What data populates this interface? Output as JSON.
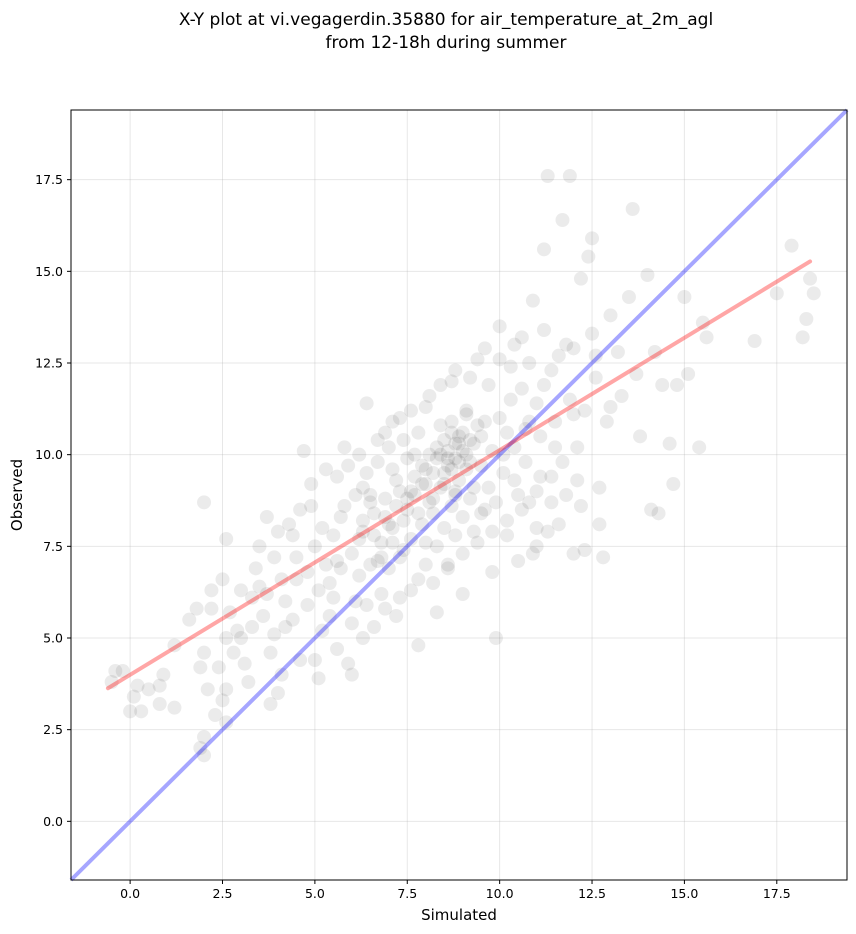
{
  "chart_data": {
    "type": "scatter",
    "title_line1": "X-Y plot at vi.vegagerdin.35880 for air_temperature_at_2m_agl",
    "title_line2": "from 12-18h during summer",
    "xlabel": "Simulated",
    "ylabel": "Observed",
    "xlim": [
      -1.6,
      19.4
    ],
    "ylim": [
      -1.6,
      19.4
    ],
    "xticks": [
      0.0,
      2.5,
      5.0,
      7.5,
      10.0,
      12.5,
      15.0,
      17.5
    ],
    "xtick_labels": [
      "0.0",
      "2.5",
      "5.0",
      "7.5",
      "10.0",
      "12.5",
      "15.0",
      "17.5"
    ],
    "yticks": [
      0.0,
      2.5,
      5.0,
      7.5,
      10.0,
      12.5,
      15.0,
      17.5
    ],
    "ytick_labels": [
      "0.0",
      "2.5",
      "5.0",
      "7.5",
      "10.0",
      "12.5",
      "15.0",
      "17.5"
    ],
    "grid": true,
    "point_color": "#000000",
    "point_opacity": 0.08,
    "identity_line": {
      "color": "#0000ff",
      "opacity": 0.35,
      "x": [
        -1.6,
        19.4
      ],
      "y": [
        -1.6,
        19.4
      ]
    },
    "fit_line": {
      "color": "#ff0000",
      "opacity": 0.35,
      "x": [
        -0.6,
        18.4
      ],
      "y": [
        3.63,
        15.27
      ]
    },
    "points": [
      [
        -0.5,
        3.8
      ],
      [
        -0.4,
        4.1
      ],
      [
        -0.2,
        4.1
      ],
      [
        0.1,
        3.4
      ],
      [
        0.2,
        3.7
      ],
      [
        0.0,
        3.0
      ],
      [
        0.3,
        3.0
      ],
      [
        0.5,
        3.6
      ],
      [
        0.8,
        3.7
      ],
      [
        0.9,
        4.0
      ],
      [
        0.8,
        3.2
      ],
      [
        1.2,
        3.1
      ],
      [
        1.2,
        4.8
      ],
      [
        1.6,
        5.5
      ],
      [
        1.8,
        5.8
      ],
      [
        1.9,
        4.2
      ],
      [
        2.0,
        4.6
      ],
      [
        2.1,
        3.6
      ],
      [
        1.9,
        2.0
      ],
      [
        2.0,
        2.3
      ],
      [
        2.0,
        1.8
      ],
      [
        2.3,
        2.9
      ],
      [
        2.5,
        3.3
      ],
      [
        2.6,
        3.6
      ],
      [
        2.6,
        2.7
      ],
      [
        2.0,
        8.7
      ],
      [
        2.2,
        6.3
      ],
      [
        2.5,
        6.6
      ],
      [
        2.6,
        7.7
      ],
      [
        2.7,
        5.7
      ],
      [
        3.0,
        5.0
      ],
      [
        3.1,
        4.3
      ],
      [
        3.2,
        3.8
      ],
      [
        3.3,
        6.1
      ],
      [
        3.5,
        6.4
      ],
      [
        3.7,
        8.3
      ],
      [
        3.8,
        3.2
      ],
      [
        4.0,
        3.5
      ],
      [
        4.1,
        4.0
      ],
      [
        4.2,
        5.3
      ],
      [
        3.9,
        7.2
      ],
      [
        4.4,
        7.8
      ],
      [
        2.2,
        5.8
      ],
      [
        2.6,
        5.0
      ],
      [
        2.8,
        4.6
      ],
      [
        2.4,
        4.2
      ],
      [
        2.9,
        5.2
      ],
      [
        3.4,
        6.9
      ],
      [
        3.6,
        5.6
      ],
      [
        3.8,
        4.6
      ],
      [
        4.2,
        6.0
      ],
      [
        4.5,
        6.6
      ],
      [
        4.6,
        4.4
      ],
      [
        4.7,
        10.1
      ],
      [
        4.9,
        8.6
      ],
      [
        5.0,
        4.4
      ],
      [
        5.1,
        3.9
      ],
      [
        5.2,
        5.2
      ],
      [
        5.3,
        7.0
      ],
      [
        5.5,
        6.1
      ],
      [
        5.6,
        4.7
      ],
      [
        5.6,
        9.4
      ],
      [
        5.7,
        8.3
      ],
      [
        5.8,
        10.2
      ],
      [
        5.9,
        4.3
      ],
      [
        6.0,
        4.0
      ],
      [
        6.1,
        6.0
      ],
      [
        6.2,
        7.7
      ],
      [
        6.3,
        5.0
      ],
      [
        6.3,
        9.1
      ],
      [
        6.4,
        11.4
      ],
      [
        6.5,
        8.7
      ],
      [
        6.6,
        5.3
      ],
      [
        6.7,
        7.1
      ],
      [
        6.8,
        6.2
      ],
      [
        6.9,
        10.6
      ],
      [
        7.0,
        8.1
      ],
      [
        7.1,
        9.6
      ],
      [
        7.2,
        5.6
      ],
      [
        7.3,
        11.0
      ],
      [
        7.4,
        7.4
      ],
      [
        7.5,
        8.8
      ],
      [
        7.6,
        6.3
      ],
      [
        7.7,
        10.0
      ],
      [
        7.8,
        4.8
      ],
      [
        7.9,
        9.2
      ],
      [
        8.0,
        7.6
      ],
      [
        8.1,
        11.6
      ],
      [
        8.2,
        8.4
      ],
      [
        8.3,
        5.7
      ],
      [
        8.4,
        10.8
      ],
      [
        8.5,
        9.5
      ],
      [
        8.6,
        7.0
      ],
      [
        8.7,
        12.0
      ],
      [
        8.8,
        8.9
      ],
      [
        8.9,
        10.3
      ],
      [
        9.0,
        6.2
      ],
      [
        9.1,
        11.2
      ],
      [
        9.2,
        9.8
      ],
      [
        9.3,
        7.9
      ],
      [
        9.4,
        12.6
      ],
      [
        9.5,
        10.5
      ],
      [
        9.6,
        8.5
      ],
      [
        9.7,
        11.9
      ],
      [
        9.8,
        6.8
      ],
      [
        9.9,
        5.0
      ],
      [
        10.0,
        13.5
      ],
      [
        10.1,
        10.0
      ],
      [
        10.2,
        8.2
      ],
      [
        10.3,
        12.4
      ],
      [
        10.4,
        9.3
      ],
      [
        10.5,
        7.1
      ],
      [
        10.6,
        13.2
      ],
      [
        10.7,
        10.7
      ],
      [
        10.8,
        8.7
      ],
      [
        10.9,
        14.2
      ],
      [
        11.0,
        11.4
      ],
      [
        11.1,
        9.4
      ],
      [
        11.2,
        15.6
      ],
      [
        11.3,
        17.6
      ],
      [
        11.4,
        12.3
      ],
      [
        11.5,
        10.2
      ],
      [
        11.6,
        8.1
      ],
      [
        11.7,
        16.4
      ],
      [
        11.8,
        13.0
      ],
      [
        11.9,
        17.6
      ],
      [
        12.0,
        11.1
      ],
      [
        12.1,
        9.3
      ],
      [
        12.2,
        14.8
      ],
      [
        12.3,
        7.4
      ],
      [
        12.4,
        15.4
      ],
      [
        12.5,
        15.9
      ],
      [
        12.6,
        12.7
      ],
      [
        12.7,
        9.1
      ],
      [
        12.8,
        7.2
      ],
      [
        12.9,
        10.9
      ],
      [
        13.0,
        13.8
      ],
      [
        13.2,
        12.8
      ],
      [
        13.3,
        11.6
      ],
      [
        13.5,
        14.3
      ],
      [
        13.6,
        16.7
      ],
      [
        13.7,
        12.2
      ],
      [
        13.8,
        10.5
      ],
      [
        14.0,
        14.9
      ],
      [
        14.1,
        8.5
      ],
      [
        14.2,
        12.8
      ],
      [
        14.3,
        8.4
      ],
      [
        14.4,
        11.9
      ],
      [
        14.6,
        10.3
      ],
      [
        14.7,
        9.2
      ],
      [
        14.8,
        11.9
      ],
      [
        15.0,
        14.3
      ],
      [
        15.1,
        12.2
      ],
      [
        15.4,
        10.2
      ],
      [
        15.5,
        13.6
      ],
      [
        15.6,
        13.2
      ],
      [
        16.9,
        13.1
      ],
      [
        17.5,
        14.4
      ],
      [
        17.9,
        15.7
      ],
      [
        18.2,
        13.2
      ],
      [
        18.3,
        13.7
      ],
      [
        18.4,
        14.8
      ],
      [
        18.5,
        14.4
      ],
      [
        4.5,
        7.2
      ],
      [
        4.8,
        6.8
      ],
      [
        5.0,
        7.5
      ],
      [
        5.2,
        8.0
      ],
      [
        5.4,
        6.5
      ],
      [
        5.5,
        7.8
      ],
      [
        5.7,
        6.9
      ],
      [
        5.8,
        8.6
      ],
      [
        6.0,
        7.3
      ],
      [
        6.1,
        8.9
      ],
      [
        6.2,
        6.7
      ],
      [
        6.3,
        7.9
      ],
      [
        6.4,
        9.5
      ],
      [
        6.5,
        7.0
      ],
      [
        6.6,
        8.4
      ],
      [
        6.7,
        9.8
      ],
      [
        6.8,
        7.6
      ],
      [
        6.9,
        8.8
      ],
      [
        7.0,
        10.2
      ],
      [
        7.0,
        6.9
      ],
      [
        7.1,
        8.0
      ],
      [
        7.2,
        9.3
      ],
      [
        7.3,
        7.2
      ],
      [
        7.4,
        10.4
      ],
      [
        7.5,
        8.5
      ],
      [
        7.5,
        9.9
      ],
      [
        7.6,
        7.7
      ],
      [
        7.7,
        8.9
      ],
      [
        7.8,
        10.6
      ],
      [
        7.9,
        8.1
      ],
      [
        8.0,
        9.6
      ],
      [
        8.0,
        7.0
      ],
      [
        8.1,
        10.0
      ],
      [
        8.2,
        8.8
      ],
      [
        8.3,
        9.9
      ],
      [
        8.3,
        7.5
      ],
      [
        8.4,
        9.1
      ],
      [
        8.5,
        10.4
      ],
      [
        8.5,
        8.0
      ],
      [
        8.6,
        9.7
      ],
      [
        8.7,
        10.9
      ],
      [
        8.7,
        8.6
      ],
      [
        8.8,
        9.9
      ],
      [
        8.8,
        7.8
      ],
      [
        8.9,
        9.3
      ],
      [
        9.0,
        10.6
      ],
      [
        9.0,
        8.3
      ],
      [
        9.1,
        10.0
      ],
      [
        9.1,
        11.1
      ],
      [
        9.2,
        8.8
      ],
      [
        9.3,
        10.3
      ],
      [
        9.3,
        9.1
      ],
      [
        9.4,
        10.8
      ],
      [
        9.5,
        8.4
      ],
      [
        9.5,
        9.7
      ],
      [
        9.6,
        10.9
      ],
      [
        9.7,
        9.1
      ],
      [
        9.8,
        10.1
      ],
      [
        9.9,
        8.7
      ],
      [
        10.0,
        11.0
      ],
      [
        10.1,
        9.5
      ],
      [
        10.2,
        10.6
      ],
      [
        10.3,
        11.5
      ],
      [
        10.4,
        10.2
      ],
      [
        10.5,
        8.9
      ],
      [
        10.6,
        11.8
      ],
      [
        10.7,
        9.8
      ],
      [
        10.8,
        10.9
      ],
      [
        11.0,
        9.0
      ],
      [
        11.1,
        10.5
      ],
      [
        11.2,
        11.9
      ],
      [
        11.4,
        9.4
      ],
      [
        11.5,
        10.9
      ],
      [
        11.7,
        9.8
      ],
      [
        11.9,
        11.5
      ],
      [
        12.1,
        10.2
      ],
      [
        12.3,
        11.2
      ],
      [
        8.6,
        10.1
      ],
      [
        8.7,
        9.6
      ],
      [
        8.8,
        10.3
      ],
      [
        8.9,
        9.8
      ],
      [
        9.0,
        10.1
      ],
      [
        8.5,
        9.2
      ],
      [
        8.6,
        9.9
      ],
      [
        8.9,
        10.5
      ],
      [
        9.1,
        9.6
      ],
      [
        8.4,
        10.0
      ],
      [
        8.2,
        9.5
      ],
      [
        8.8,
        9.0
      ],
      [
        9.2,
        10.4
      ],
      [
        8.3,
        10.2
      ],
      [
        8.7,
        10.6
      ],
      [
        8.0,
        9.2
      ],
      [
        8.1,
        8.7
      ],
      [
        7.9,
        9.7
      ],
      [
        7.8,
        8.4
      ],
      [
        7.7,
        9.4
      ],
      [
        7.6,
        9.0
      ],
      [
        7.4,
        8.2
      ],
      [
        7.3,
        9.0
      ],
      [
        7.2,
        8.6
      ],
      [
        7.1,
        7.6
      ],
      [
        6.9,
        8.3
      ],
      [
        6.8,
        7.2
      ],
      [
        6.6,
        7.8
      ],
      [
        6.5,
        8.9
      ],
      [
        6.3,
        8.2
      ],
      [
        3.0,
        6.3
      ],
      [
        3.3,
        5.3
      ],
      [
        3.5,
        7.5
      ],
      [
        3.7,
        6.2
      ],
      [
        3.9,
        5.1
      ],
      [
        4.0,
        7.9
      ],
      [
        4.1,
        6.6
      ],
      [
        4.3,
        8.1
      ],
      [
        4.4,
        5.5
      ],
      [
        4.6,
        8.5
      ],
      [
        4.8,
        5.9
      ],
      [
        4.9,
        9.2
      ],
      [
        5.1,
        6.3
      ],
      [
        5.3,
        9.6
      ],
      [
        5.4,
        5.6
      ],
      [
        5.6,
        7.1
      ],
      [
        5.9,
        9.7
      ],
      [
        6.0,
        5.4
      ],
      [
        6.2,
        10.0
      ],
      [
        6.4,
        5.9
      ],
      [
        6.7,
        10.4
      ],
      [
        6.9,
        5.8
      ],
      [
        7.1,
        10.9
      ],
      [
        7.3,
        6.1
      ],
      [
        7.6,
        11.2
      ],
      [
        7.8,
        6.6
      ],
      [
        8.0,
        11.3
      ],
      [
        8.2,
        6.5
      ],
      [
        8.4,
        11.9
      ],
      [
        8.6,
        6.9
      ],
      [
        8.8,
        12.3
      ],
      [
        9.0,
        7.3
      ],
      [
        9.2,
        12.1
      ],
      [
        9.4,
        7.6
      ],
      [
        9.6,
        12.9
      ],
      [
        9.8,
        7.9
      ],
      [
        10.0,
        12.6
      ],
      [
        10.2,
        7.8
      ],
      [
        10.4,
        13.0
      ],
      [
        10.6,
        8.5
      ],
      [
        10.8,
        12.5
      ],
      [
        11.0,
        8.0
      ],
      [
        11.2,
        13.4
      ],
      [
        11.4,
        8.7
      ],
      [
        11.6,
        12.7
      ],
      [
        11.8,
        8.9
      ],
      [
        12.0,
        12.9
      ],
      [
        12.2,
        8.6
      ],
      [
        12.5,
        13.3
      ],
      [
        12.7,
        8.1
      ],
      [
        11.0,
        7.5
      ],
      [
        11.3,
        7.9
      ],
      [
        10.9,
        7.3
      ],
      [
        12.0,
        7.3
      ],
      [
        12.6,
        12.1
      ],
      [
        13.0,
        11.3
      ]
    ]
  }
}
